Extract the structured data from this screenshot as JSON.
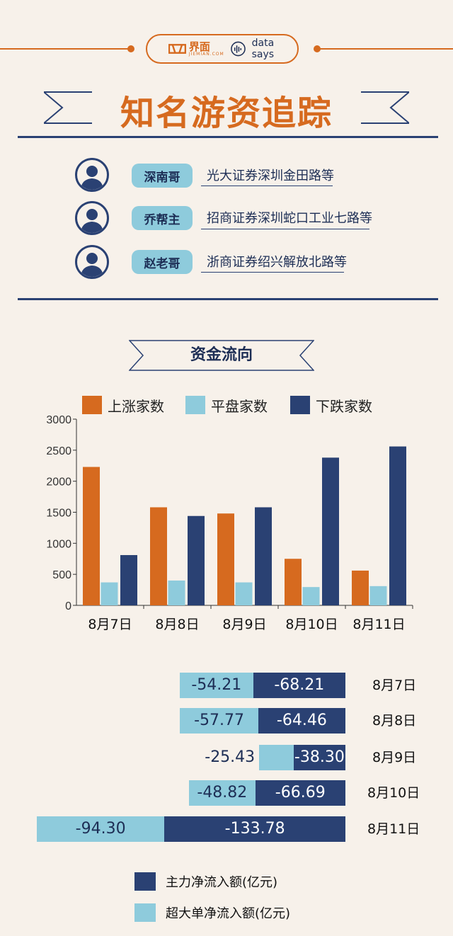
{
  "brand": {
    "logo_text": "界面",
    "logo_sub": "JIEMIAN.COM",
    "partner": "data says",
    "colors": {
      "orange": "#d66a1f",
      "navy": "#2a4173",
      "light_blue": "#8ecbdc",
      "background": "#f7f1ea"
    }
  },
  "title": "知名游资追踪",
  "traders": [
    {
      "name": "深南哥",
      "location": "光大证券深圳金田路等",
      "icon": "person-avatar-icon"
    },
    {
      "name": "乔帮主",
      "location": "招商证券深圳蛇口工业七路等",
      "icon": "person-avatar-icon"
    },
    {
      "name": "赵老哥",
      "location": "浙商证券绍兴解放北路等",
      "icon": "person-avatar-icon"
    }
  ],
  "section_title": "资金流向",
  "chart_data": [
    {
      "type": "bar",
      "categories": [
        "8月7日",
        "8月8日",
        "8月9日",
        "8月10日",
        "8月11日"
      ],
      "series": [
        {
          "name": "上涨家数",
          "color": "#d66a1f",
          "values": [
            2230,
            1580,
            1480,
            750,
            560
          ]
        },
        {
          "name": "平盘家数",
          "color": "#8ecbdc",
          "values": [
            370,
            400,
            370,
            295,
            310
          ]
        },
        {
          "name": "下跌家数",
          "color": "#2a4173",
          "values": [
            810,
            1440,
            1580,
            2380,
            2560
          ]
        }
      ],
      "ylim": [
        0,
        3000
      ],
      "yticks": [
        0,
        500,
        1000,
        1500,
        2000,
        2500,
        3000
      ],
      "legend": "top"
    },
    {
      "type": "bar",
      "orientation": "horizontal",
      "categories": [
        "8月7日",
        "8月8日",
        "8月9日",
        "8月10日",
        "8月11日"
      ],
      "series": [
        {
          "name": "超大单净流入额(亿元)",
          "color": "#8ecbdc",
          "values": [
            -54.21,
            -57.77,
            -25.43,
            -48.82,
            -94.3
          ],
          "labels": [
            "-54.21",
            "-57.77",
            "-25.43",
            "-48.82",
            "-94.30"
          ]
        },
        {
          "name": "主力净流入额(亿元)",
          "color": "#2a4173",
          "values": [
            -68.21,
            -64.46,
            -38.3,
            -66.69,
            -133.78
          ],
          "labels": [
            "-68.21",
            "-64.46",
            "-38.30",
            "-66.69",
            "-133.78"
          ]
        }
      ],
      "legend": "bottom"
    }
  ]
}
